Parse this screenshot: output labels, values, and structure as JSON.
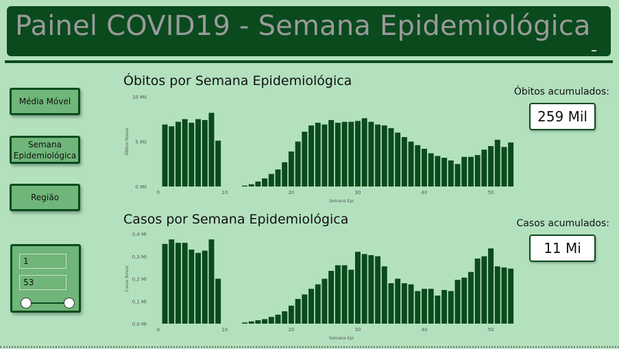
{
  "header": {
    "title": "Painel COVID19 - Semana Epidemiológica"
  },
  "sidebar": {
    "buttons": [
      {
        "id": "media-movel",
        "label": "Média Móvel"
      },
      {
        "id": "semana",
        "label": "Semana Epidemiológica"
      },
      {
        "id": "regiao",
        "label": "Região"
      }
    ],
    "range": {
      "min": "1",
      "max": "53"
    }
  },
  "kpis": {
    "obitos": {
      "label": "Óbitos acumulados:",
      "value": "259 Mil"
    },
    "casos": {
      "label": "Casos acumulados:",
      "value": "11 Mi"
    }
  },
  "chart_data": [
    {
      "type": "bar",
      "title": "Óbitos por Semana Epidemiológica",
      "xlabel": "Semana Epi",
      "ylabel": "Óbitos Novos",
      "xticks": [
        "0",
        "10",
        "20",
        "30",
        "40",
        "50"
      ],
      "yticks": [
        "0 Mil",
        "5 Mil",
        "10 Mil"
      ],
      "xlim": [
        -0.5,
        53.5
      ],
      "ylim": [
        0,
        10000
      ],
      "color": "#0a4a1d",
      "x": [
        1,
        2,
        3,
        4,
        5,
        6,
        7,
        8,
        9,
        13,
        14,
        15,
        16,
        17,
        18,
        19,
        20,
        21,
        22,
        23,
        24,
        25,
        26,
        27,
        28,
        29,
        30,
        31,
        32,
        33,
        34,
        35,
        36,
        37,
        38,
        39,
        40,
        41,
        42,
        43,
        44,
        45,
        46,
        47,
        48,
        49,
        50,
        51,
        52,
        53
      ],
      "values": [
        6900,
        6700,
        7200,
        7500,
        7100,
        7500,
        7400,
        8200,
        5100,
        100,
        250,
        550,
        900,
        1400,
        1900,
        2700,
        3900,
        5000,
        6100,
        6800,
        7100,
        6900,
        7400,
        7100,
        7200,
        7200,
        7300,
        7600,
        7200,
        6900,
        6800,
        6500,
        6000,
        5500,
        5000,
        4600,
        4200,
        3700,
        3400,
        3200,
        2900,
        2500,
        3300,
        3300,
        3500,
        4100,
        4500,
        5200,
        4400,
        4900
      ]
    },
    {
      "type": "bar",
      "title": "Casos por Semana Epidemiológica",
      "xlabel": "Semana Epi",
      "ylabel": "Casos Novos",
      "xticks": [
        "0",
        "10",
        "20",
        "30",
        "40",
        "50"
      ],
      "yticks": [
        "0,0 Mi",
        "0,1 Mi",
        "0,2 Mi",
        "0,3 Mi",
        "0,4 Mi"
      ],
      "xlim": [
        -0.5,
        53.5
      ],
      "ylim": [
        0,
        400000
      ],
      "color": "#0a4a1d",
      "x": [
        1,
        2,
        3,
        4,
        5,
        6,
        7,
        8,
        9,
        13,
        14,
        15,
        16,
        17,
        18,
        19,
        20,
        21,
        22,
        23,
        24,
        25,
        26,
        27,
        28,
        29,
        30,
        31,
        32,
        33,
        34,
        35,
        36,
        37,
        38,
        39,
        40,
        41,
        42,
        43,
        44,
        45,
        46,
        47,
        48,
        49,
        50,
        51,
        52,
        53
      ],
      "values": [
        355000,
        375000,
        360000,
        360000,
        330000,
        315000,
        325000,
        375000,
        200000,
        5000,
        10000,
        15000,
        20000,
        30000,
        40000,
        55000,
        80000,
        110000,
        130000,
        155000,
        175000,
        200000,
        235000,
        260000,
        260000,
        240000,
        320000,
        310000,
        305000,
        300000,
        255000,
        180000,
        200000,
        180000,
        175000,
        145000,
        155000,
        155000,
        125000,
        150000,
        145000,
        195000,
        205000,
        230000,
        290000,
        300000,
        335000,
        255000,
        250000,
        245000
      ]
    }
  ]
}
